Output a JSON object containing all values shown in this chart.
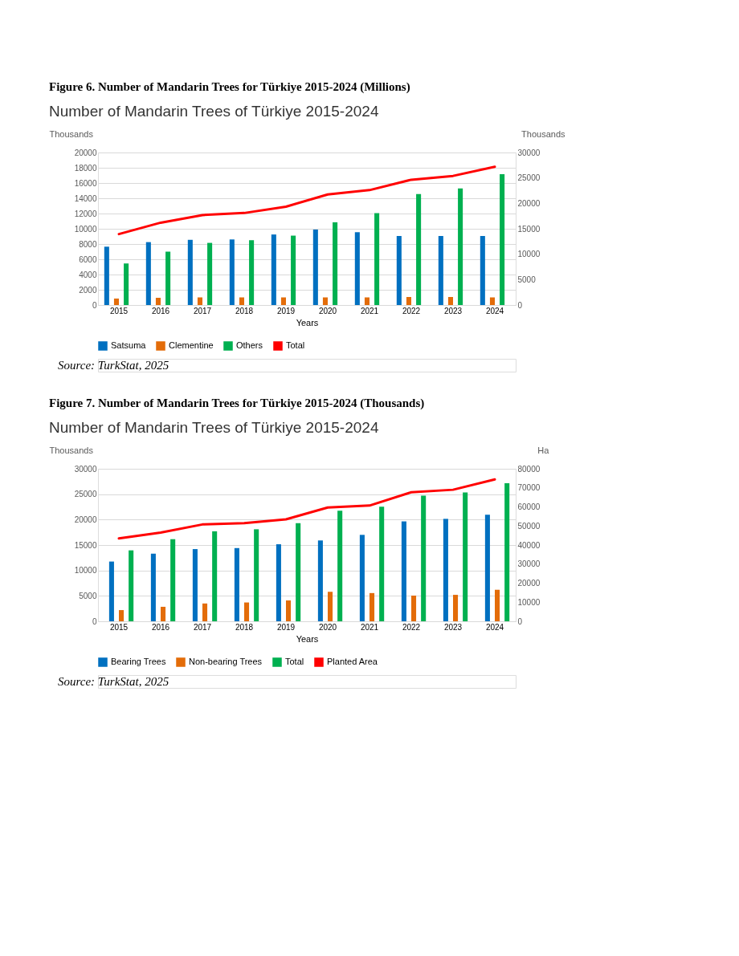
{
  "chart_data": [
    {
      "type": "bar",
      "title": "Figure 6. Number of Mandarin Trees for Türkiye 2015-2024 (Millions)",
      "subtitle": "Number of Mandarin Trees of Türkiye 2015-2024",
      "xlabel": "Years",
      "ylabel": "Thousands",
      "y2label": "Thousands",
      "categories": [
        "2015",
        "2016",
        "2017",
        "2018",
        "2019",
        "2020",
        "2021",
        "2022",
        "2023",
        "2024"
      ],
      "series": [
        {
          "name": "Satsuma",
          "color": "#0070c0",
          "values": [
            7650,
            8250,
            8550,
            8600,
            9250,
            9900,
            9550,
            9050,
            9050,
            9050
          ]
        },
        {
          "name": "Clementine",
          "color": "#e36c09",
          "values": [
            850,
            950,
            1000,
            1000,
            1000,
            1000,
            1000,
            1050,
            1050,
            1000
          ]
        },
        {
          "name": "Others",
          "color": "#00b050",
          "values": [
            5450,
            7000,
            8150,
            8500,
            9100,
            10850,
            12050,
            14550,
            15300,
            17150
          ]
        },
        {
          "name": "Total",
          "color": "#ff0000",
          "type": "line",
          "axis": "y2",
          "values": [
            13950,
            16200,
            17700,
            18100,
            19350,
            21750,
            22600,
            24650,
            25400,
            27200
          ]
        }
      ],
      "ylim": [
        0,
        20000
      ],
      "yticks": [
        0,
        2000,
        4000,
        6000,
        8000,
        10000,
        12000,
        14000,
        16000,
        18000,
        20000
      ],
      "y2lim": [
        0,
        30000
      ],
      "y2ticks": [
        0,
        5000,
        10000,
        15000,
        20000,
        25000,
        30000
      ],
      "grid": "y",
      "legend": "bottom",
      "annotations": [
        "Source: TurkStat, 2025"
      ]
    },
    {
      "type": "bar",
      "title": "Figure 7. Number of Mandarin Trees for Türkiye 2015-2024 (Thousands)",
      "subtitle": "Number of Mandarin Trees of Türkiye 2015-2024",
      "xlabel": "Years",
      "ylabel": "Thousands",
      "y2label": "Ha",
      "categories": [
        "2015",
        "2016",
        "2017",
        "2018",
        "2019",
        "2020",
        "2021",
        "2022",
        "2023",
        "2024"
      ],
      "series": [
        {
          "name": "Bearing Trees",
          "color": "#0070c0",
          "values": [
            11750,
            13300,
            14200,
            14400,
            15150,
            15900,
            17000,
            19650,
            20150,
            20950
          ]
        },
        {
          "name": "Non-bearing Trees",
          "color": "#e36c09",
          "values": [
            2200,
            2850,
            3500,
            3700,
            4100,
            5800,
            5550,
            5050,
            5200,
            6200
          ]
        },
        {
          "name": "Total",
          "color": "#00b050",
          "values": [
            13950,
            16150,
            17700,
            18100,
            19300,
            21750,
            22550,
            24700,
            25350,
            27150
          ]
        },
        {
          "name": "Planted Area",
          "color": "#ff0000",
          "type": "line",
          "axis": "y2",
          "values": [
            43500,
            46500,
            50800,
            51500,
            53500,
            59700,
            60700,
            67700,
            69000,
            74400
          ]
        }
      ],
      "ylim": [
        0,
        30000
      ],
      "yticks": [
        0,
        5000,
        10000,
        15000,
        20000,
        25000,
        30000
      ],
      "y2lim": [
        0,
        80000
      ],
      "y2ticks": [
        0,
        10000,
        20000,
        30000,
        40000,
        50000,
        60000,
        70000,
        80000
      ],
      "grid": "y",
      "legend": "bottom",
      "annotations": [
        "Source: TurkStat, 2025"
      ]
    }
  ]
}
